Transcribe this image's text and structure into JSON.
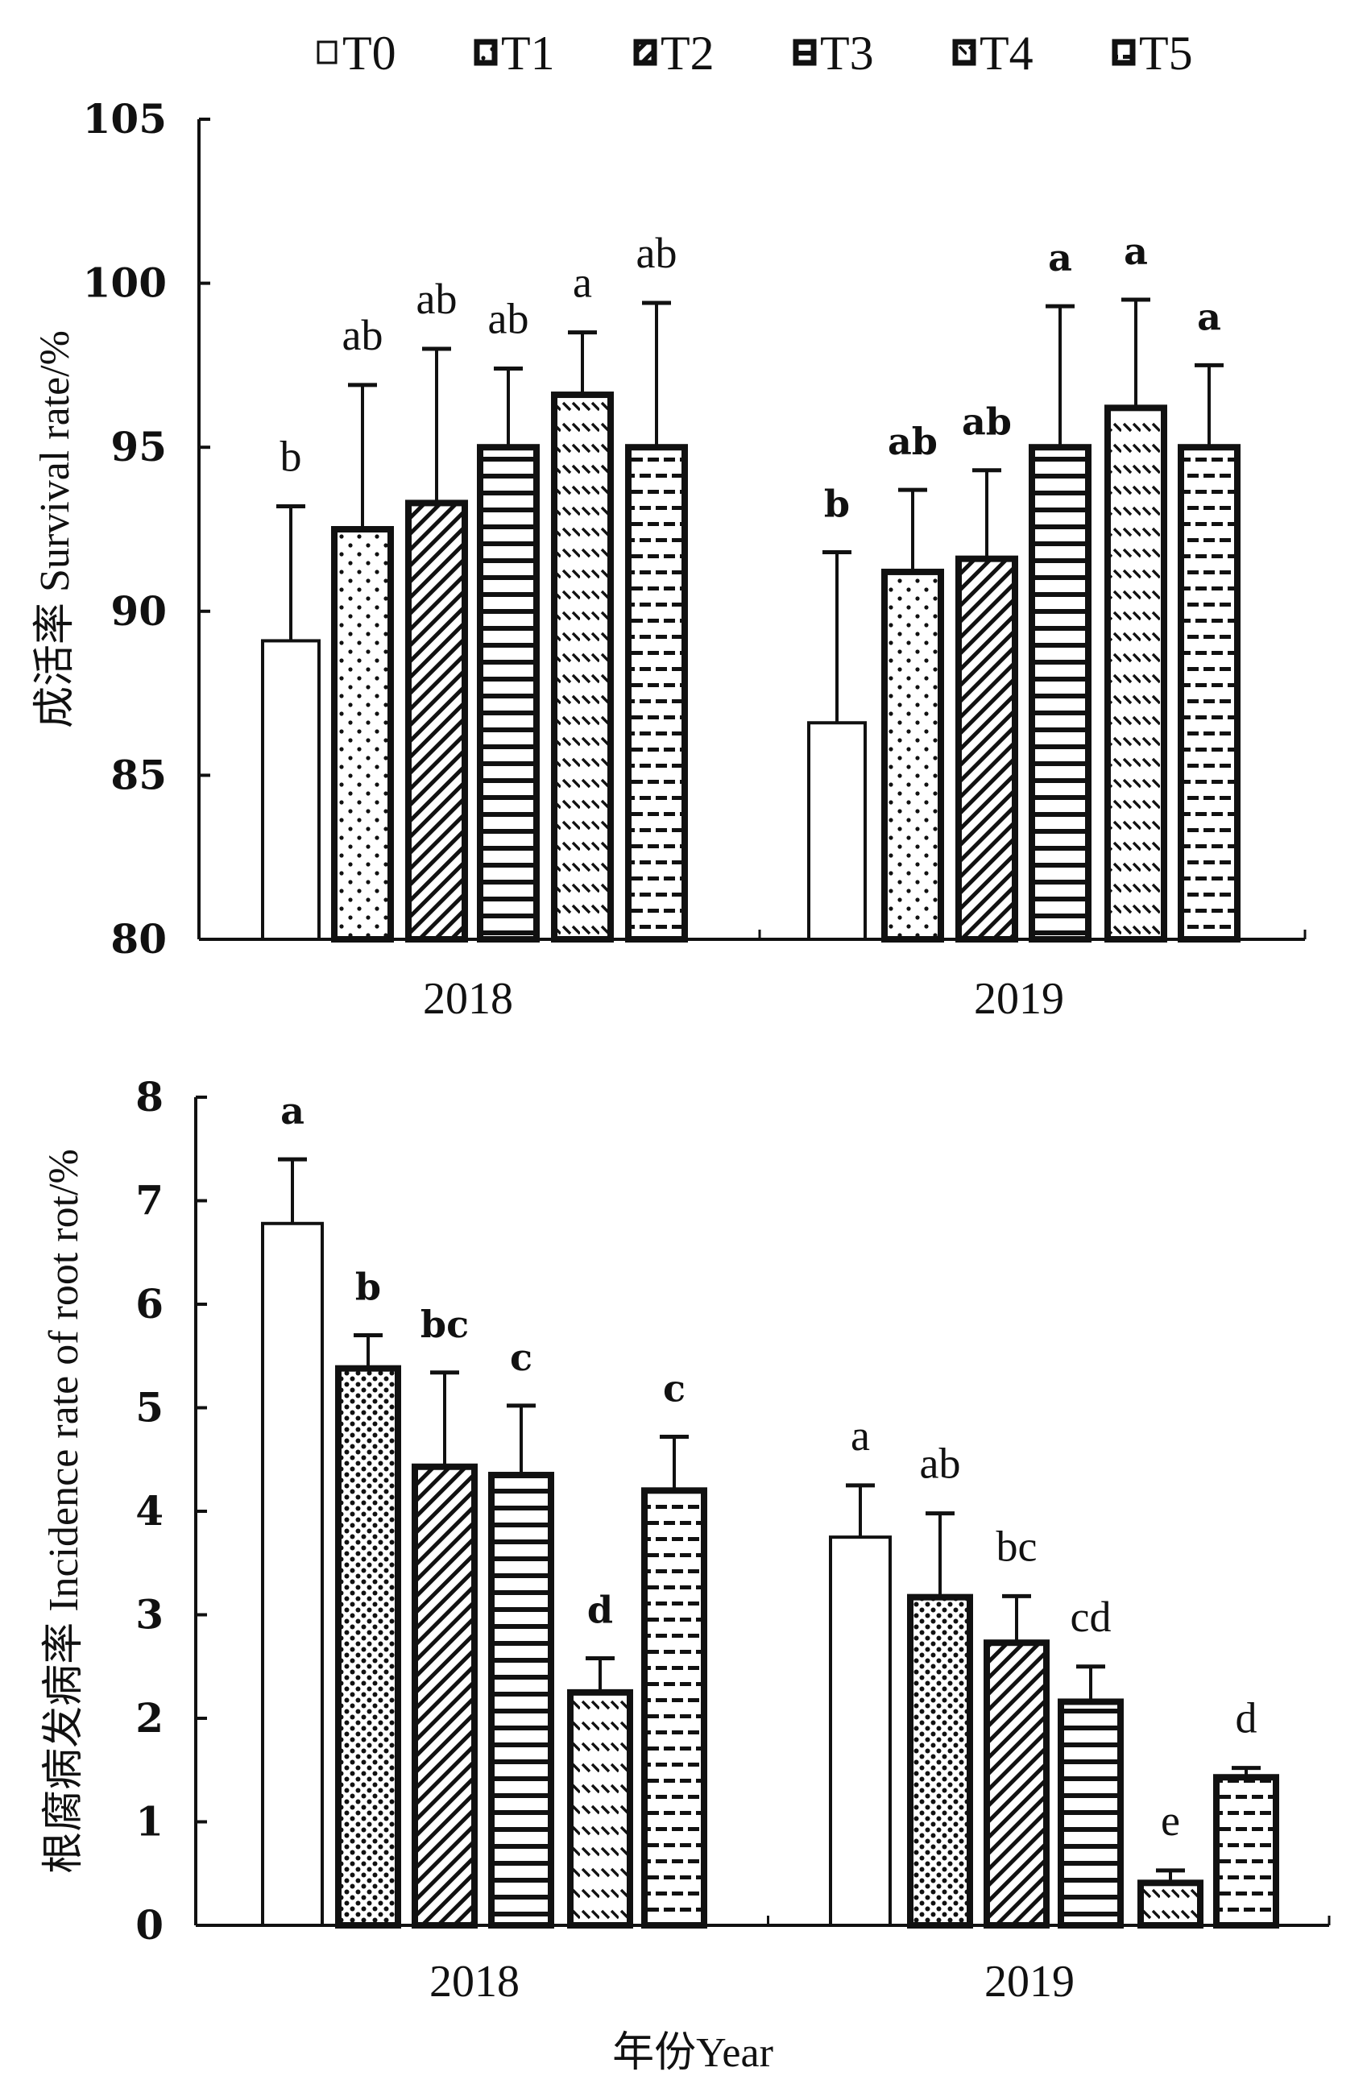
{
  "legend": {
    "entries": [
      "T0",
      "T1",
      "T2",
      "T3",
      "T4",
      "T5"
    ],
    "placement": "top-center"
  },
  "chart_data": [
    {
      "type": "bar",
      "title": "",
      "xlabel": "",
      "ylabel": "成活率 Survival rate/%",
      "ylim": [
        80,
        105
      ],
      "yticks": [
        80,
        85,
        90,
        95,
        100,
        105
      ],
      "categories": [
        "2018",
        "2019"
      ],
      "grid": false,
      "series": [
        {
          "name": "T0",
          "values": [
            89.1,
            86.6
          ],
          "error_upper": [
            93.2,
            91.8
          ],
          "letters": [
            "b",
            "b"
          ]
        },
        {
          "name": "T1",
          "values": [
            92.5,
            91.2
          ],
          "error_upper": [
            96.9,
            93.7
          ],
          "letters": [
            "ab",
            "ab"
          ]
        },
        {
          "name": "T2",
          "values": [
            93.3,
            91.6
          ],
          "error_upper": [
            98.0,
            94.3
          ],
          "letters": [
            "ab",
            "ab"
          ]
        },
        {
          "name": "T3",
          "values": [
            95.0,
            95.0
          ],
          "error_upper": [
            97.4,
            99.3
          ],
          "letters": [
            "ab",
            "a"
          ]
        },
        {
          "name": "T4",
          "values": [
            96.6,
            96.2
          ],
          "error_upper": [
            98.5,
            99.5
          ],
          "letters": [
            "a",
            "a"
          ]
        },
        {
          "name": "T5",
          "values": [
            95.0,
            95.0
          ],
          "error_upper": [
            99.4,
            97.5
          ],
          "letters": [
            "ab",
            "a"
          ]
        }
      ]
    },
    {
      "type": "bar",
      "title": "",
      "xlabel": "年份Year",
      "ylabel": "根腐病发病率 Incidence rate of root rot/%",
      "ylim": [
        0,
        8
      ],
      "yticks": [
        0,
        1,
        2,
        3,
        4,
        5,
        6,
        7,
        8
      ],
      "categories": [
        "2018",
        "2019"
      ],
      "grid": false,
      "series": [
        {
          "name": "T0",
          "values": [
            6.78,
            3.75
          ],
          "error_upper": [
            7.4,
            4.25
          ],
          "letters": [
            "a",
            "a"
          ]
        },
        {
          "name": "T1",
          "values": [
            5.38,
            3.17
          ],
          "error_upper": [
            5.7,
            3.98
          ],
          "letters": [
            "b",
            "ab"
          ]
        },
        {
          "name": "T2",
          "values": [
            4.43,
            2.73
          ],
          "error_upper": [
            5.34,
            3.18
          ],
          "letters": [
            "bc",
            "bc"
          ]
        },
        {
          "name": "T3",
          "values": [
            4.35,
            2.16
          ],
          "error_upper": [
            5.02,
            2.5
          ],
          "letters": [
            "c",
            "cd"
          ]
        },
        {
          "name": "T4",
          "values": [
            2.25,
            0.41
          ],
          "error_upper": [
            2.58,
            0.53
          ],
          "letters": [
            "d",
            "e"
          ]
        },
        {
          "name": "T5",
          "values": [
            4.2,
            1.43
          ],
          "error_upper": [
            4.72,
            1.52
          ],
          "letters": [
            "c",
            "d"
          ]
        }
      ]
    }
  ]
}
